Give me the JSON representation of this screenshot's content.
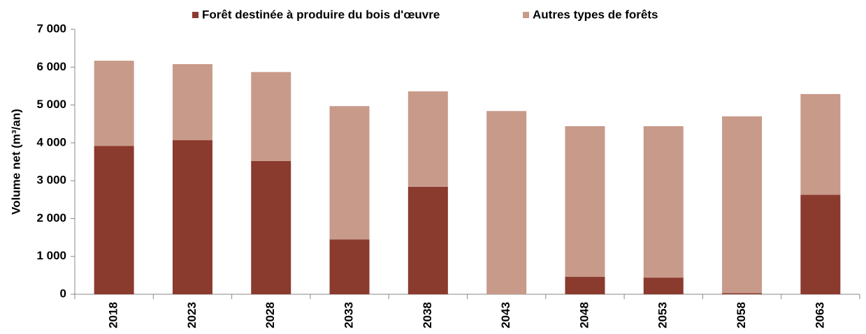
{
  "chart_data": {
    "type": "stacked-bar",
    "y_label": "Volume net (m³/an)",
    "categories": [
      "2018",
      "2023",
      "2028",
      "2033",
      "2038",
      "2043",
      "2048",
      "2053",
      "2058",
      "2063"
    ],
    "series": [
      {
        "name": "Forêt destinée à produire du bois d'œuvre",
        "color": "#8b3a2e",
        "values": [
          3920,
          4070,
          3520,
          1450,
          2840,
          0,
          460,
          440,
          30,
          2630
        ]
      },
      {
        "name": "Autres types de forêts",
        "color": "#c89a8a",
        "values": [
          2250,
          2010,
          2350,
          3520,
          2520,
          4840,
          3980,
          4000,
          4670,
          2660
        ]
      }
    ],
    "ylim": [
      0,
      7000
    ],
    "yticks": [
      0,
      {
        "value": 1000,
        "label": "1 000"
      },
      {
        "value": 2000,
        "label": "2 000"
      },
      {
        "value": 3000,
        "label": "3 000"
      },
      {
        "value": 4000,
        "label": "4 000"
      },
      {
        "value": 5000,
        "label": "5 000"
      },
      {
        "value": 6000,
        "label": "6 000"
      },
      {
        "value": 7000,
        "label": "7 000"
      }
    ],
    "grid": false,
    "legend": "top"
  }
}
